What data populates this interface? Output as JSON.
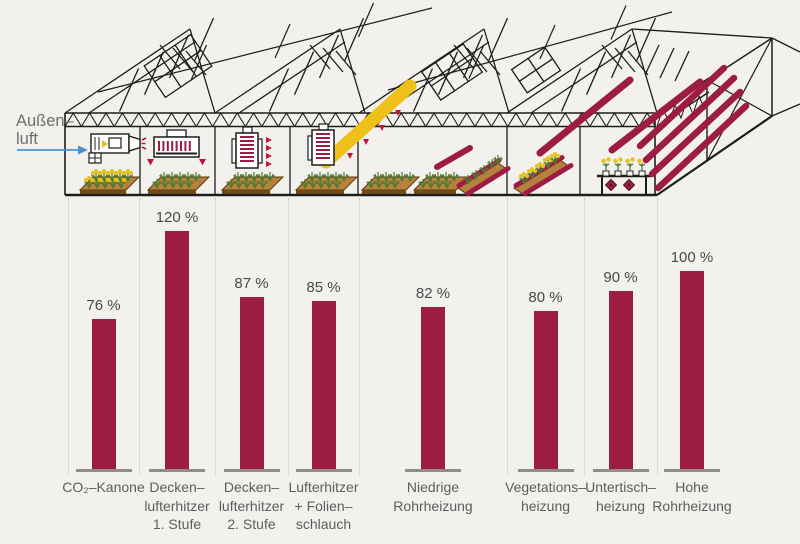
{
  "figure": {
    "type": "infographic-greenhouse-heating",
    "background": "#f2f1ee"
  },
  "illustration": {
    "outside_air_label_line1": "Außen–",
    "outside_air_label_line2": "luft",
    "sections": [
      "CO₂-Kanone",
      "Deckenlufterhitzer 1. Stufe",
      "Deckenlufterhitzer 2. Stufe",
      "Lufterhitzer + Folienschlauch",
      "Niedrige Rohrheizung",
      "Vegetationsheizung",
      "Untertischheizung",
      "Hohe Rohrheizung"
    ],
    "colors": {
      "pipe": "#9c1c44",
      "foil_tube": "#f0c01a",
      "arrow_blue": "#4a90d2",
      "line": "#1d1d1b",
      "bed_top": "#b5813c",
      "bed_front": "#6f4a1a",
      "plant_green": "#4e7a31",
      "flower_yellow": "#e7c21c",
      "triangle_red": "#c01535"
    }
  },
  "chart_data": {
    "type": "bar",
    "title": "",
    "unit": "%",
    "categories": [
      "CO₂-Kanone",
      "Deckenlufterhitzer 1. Stufe",
      "Deckenlufterhitzer 2. Stufe",
      "Lufterhitzer + Folienschlauch",
      "Niedrige Rohrheizung",
      "Vegetationsheizung",
      "Untertischheizung",
      "Hohe Rohrheizung"
    ],
    "category_display_lines": [
      [
        "CO₂–Kanone"
      ],
      [
        "Decken–",
        "lufterhitzer",
        "1. Stufe"
      ],
      [
        "Decken–",
        "lufterhitzer",
        "2. Stufe"
      ],
      [
        "Lufterhitzer",
        "+ Folien–",
        "schlauch"
      ],
      [
        "Niedrige",
        "Rohrheizung"
      ],
      [
        "Vegetations–",
        "heizung"
      ],
      [
        "Untertisch–",
        "heizung"
      ],
      [
        "Hohe",
        "Rohrheizung"
      ]
    ],
    "values": [
      76,
      120,
      87,
      85,
      82,
      80,
      90,
      100
    ],
    "value_labels": [
      "76 %",
      "120 %",
      "87 %",
      "85 %",
      "82 %",
      "80 %",
      "90 %",
      "100 %"
    ],
    "bar_color": "#9c1c44",
    "ylim": [
      0,
      130
    ],
    "grid": false,
    "legend": false,
    "baseline_color": "#8f8d88",
    "separator_style": "dotted"
  }
}
